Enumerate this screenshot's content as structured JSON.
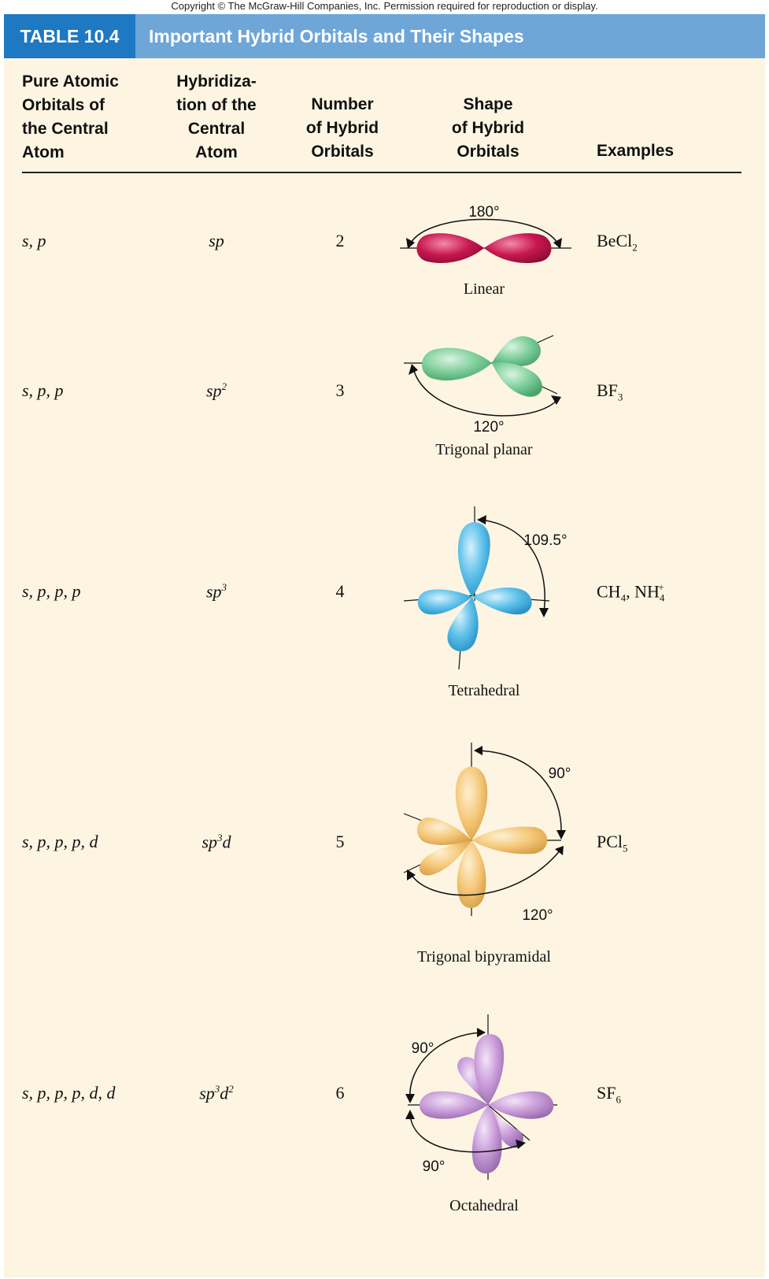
{
  "copyright": "Copyright © The McGraw-Hill Companies, Inc. Permission required for reproduction or display.",
  "table": {
    "number": "TABLE 10.4",
    "title": "Important Hybrid Orbitals and Their Shapes",
    "headers": {
      "col1": [
        "Pure Atomic",
        "Orbitals of",
        "the Central",
        "Atom"
      ],
      "col2": [
        "Hybridiza-",
        "tion of the",
        "Central",
        "Atom"
      ],
      "col3": [
        "Number",
        "of Hybrid",
        "Orbitals"
      ],
      "col4": [
        "Shape",
        "of Hybrid",
        "Orbitals"
      ],
      "col5": [
        "Examples"
      ]
    },
    "rows": [
      {
        "orbitals": "s, p",
        "hyb": "sp",
        "hyb_sup": "",
        "hyb_tail": "",
        "hyb_sup2": "",
        "number": "2",
        "shape": "Linear",
        "angles": [
          "180°"
        ],
        "example": "BeCl",
        "ex_sub": "2",
        "example_tail": ""
      },
      {
        "orbitals": "s, p, p",
        "hyb": "sp",
        "hyb_sup": "2",
        "hyb_tail": "",
        "hyb_sup2": "",
        "number": "3",
        "shape": "Trigonal planar",
        "angles": [
          "120°"
        ],
        "example": "BF",
        "ex_sub": "3",
        "example_tail": ""
      },
      {
        "orbitals": "s, p, p, p",
        "hyb": "sp",
        "hyb_sup": "3",
        "hyb_tail": "",
        "hyb_sup2": "",
        "number": "4",
        "shape": "Tetrahedral",
        "angles": [
          "109.5°"
        ],
        "example": "CH",
        "ex_sub": "4",
        "example_tail": ", NH",
        "ex2_sub": "4",
        "ex2_sup": "+"
      },
      {
        "orbitals": "s, p, p, p, d",
        "hyb": "sp",
        "hyb_sup": "3",
        "hyb_tail": "d",
        "hyb_sup2": "",
        "number": "5",
        "shape": "Trigonal bipyramidal",
        "angles": [
          "90°",
          "120°"
        ],
        "example": "PCl",
        "ex_sub": "5",
        "example_tail": ""
      },
      {
        "orbitals": "s, p, p, p, d, d",
        "hyb": "sp",
        "hyb_sup": "3",
        "hyb_tail": "d",
        "hyb_sup2": "2",
        "number": "6",
        "shape": "Octahedral",
        "angles": [
          "90°",
          "90°"
        ],
        "example": "SF",
        "ex_sub": "6",
        "example_tail": ""
      }
    ]
  },
  "colors": {
    "header_dark": "#1e78c2",
    "header_light": "#6ea6d8",
    "background": "#fdf5e2",
    "linear": "#c8174f",
    "trigonal": "#7fcf9a",
    "tetrahedral": "#5cc0ea",
    "bipyramidal": "#f5c97a",
    "octahedral": "#c79ad8"
  }
}
